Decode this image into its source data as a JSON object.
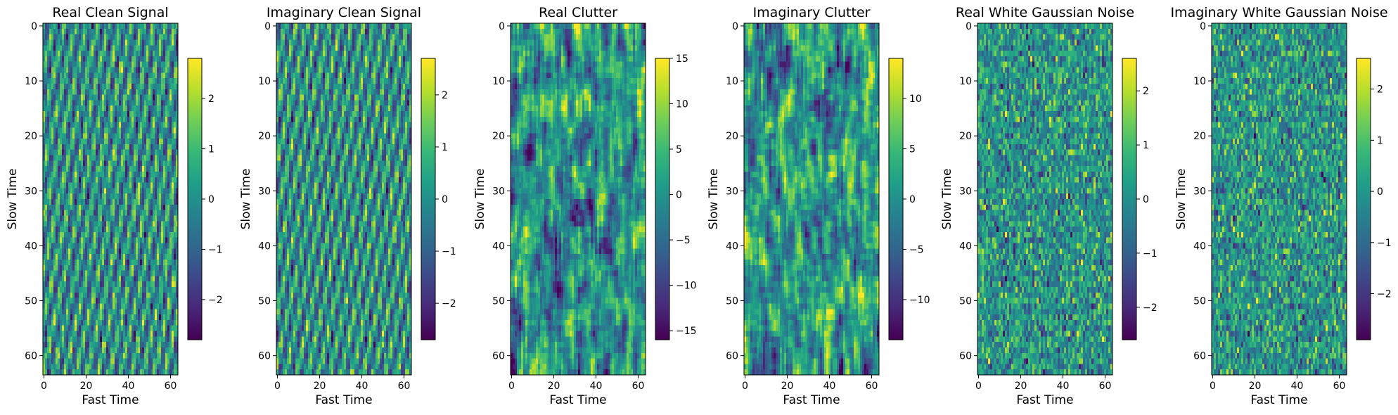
{
  "chart_data": [
    {
      "type": "heatmap",
      "title": "Real Clean Signal",
      "xlabel": "Fast Time",
      "ylabel": "Slow Time",
      "grid_size": [
        64,
        64
      ],
      "x_ticks": [
        0,
        20,
        40,
        60
      ],
      "y_ticks": [
        0,
        10,
        20,
        30,
        40,
        50,
        60
      ],
      "colorbar": {
        "range": [
          -2.8,
          2.8
        ],
        "ticks": [
          -2,
          -1,
          0,
          1,
          2
        ]
      },
      "pattern": "sinusoid"
    },
    {
      "type": "heatmap",
      "title": "Imaginary Clean Signal",
      "xlabel": "Fast Time",
      "ylabel": "Slow Time",
      "grid_size": [
        64,
        64
      ],
      "x_ticks": [
        0,
        20,
        40,
        60
      ],
      "y_ticks": [
        0,
        10,
        20,
        30,
        40,
        50,
        60
      ],
      "colorbar": {
        "range": [
          -2.7,
          2.7
        ],
        "ticks": [
          -2,
          -1,
          0,
          1,
          2
        ]
      },
      "pattern": "sinusoid"
    },
    {
      "type": "heatmap",
      "title": "Real Clutter",
      "xlabel": "Fast Time",
      "ylabel": "Slow Time",
      "grid_size": [
        64,
        64
      ],
      "x_ticks": [
        0,
        20,
        40,
        60
      ],
      "y_ticks": [
        0,
        10,
        20,
        30,
        40,
        50,
        60
      ],
      "colorbar": {
        "range": [
          -16,
          15
        ],
        "ticks": [
          -15,
          -10,
          -5,
          0,
          5,
          10,
          15
        ]
      },
      "pattern": "smooth-noise"
    },
    {
      "type": "heatmap",
      "title": "Imaginary Clutter",
      "xlabel": "Fast Time",
      "ylabel": "Slow Time",
      "grid_size": [
        64,
        64
      ],
      "x_ticks": [
        0,
        20,
        40,
        60
      ],
      "y_ticks": [
        0,
        10,
        20,
        30,
        40,
        50,
        60
      ],
      "colorbar": {
        "range": [
          -14,
          14
        ],
        "ticks": [
          -10,
          -5,
          0,
          5,
          10
        ]
      },
      "pattern": "smooth-noise"
    },
    {
      "type": "heatmap",
      "title": "Real White Gaussian Noise",
      "xlabel": "Fast Time",
      "ylabel": "Slow Time",
      "grid_size": [
        64,
        64
      ],
      "x_ticks": [
        0,
        20,
        40,
        60
      ],
      "y_ticks": [
        0,
        10,
        20,
        30,
        40,
        50,
        60
      ],
      "colorbar": {
        "range": [
          -2.6,
          2.6
        ],
        "ticks": [
          -2,
          -1,
          0,
          1,
          2
        ]
      },
      "pattern": "white-noise"
    },
    {
      "type": "heatmap",
      "title": "Imaginary White Gaussian Noise",
      "xlabel": "Fast Time",
      "ylabel": "Slow Time",
      "grid_size": [
        64,
        64
      ],
      "x_ticks": [
        0,
        20,
        40,
        60
      ],
      "y_ticks": [
        0,
        10,
        20,
        30,
        40,
        50,
        60
      ],
      "colorbar": {
        "range": [
          -2.9,
          2.6
        ],
        "ticks": [
          -2,
          -1,
          0,
          1,
          2
        ]
      },
      "pattern": "white-noise"
    }
  ],
  "colormap": "viridis"
}
